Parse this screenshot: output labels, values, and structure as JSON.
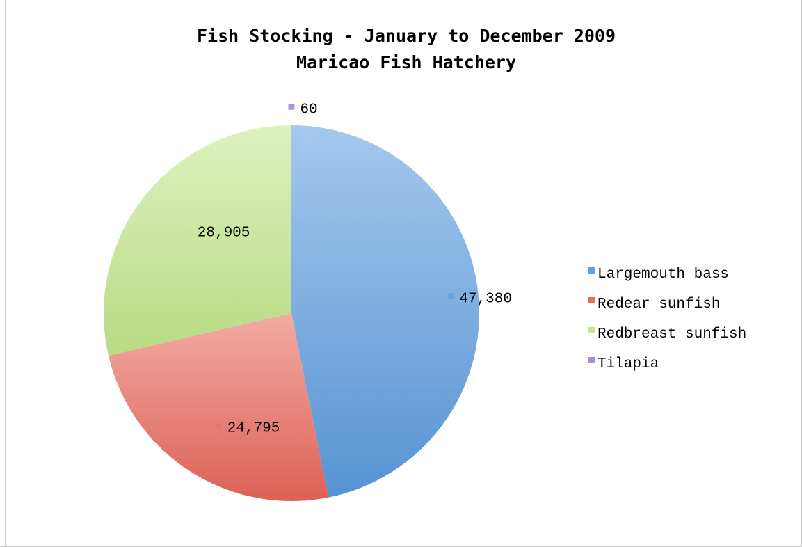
{
  "chart_data": {
    "type": "pie",
    "title": "Fish Stocking - January to December 2009",
    "subtitle": "Maricao Fish Hatchery",
    "categories": [
      "Largemouth bass",
      "Redear sunfish",
      "Redbreast sunfish",
      "Tilapia"
    ],
    "values": [
      47380,
      24795,
      28905,
      60
    ],
    "data_labels": [
      "47,380",
      "24,795",
      "28,905",
      "60"
    ],
    "colors": [
      "#5b9bde",
      "#e8665a",
      "#c2e68a",
      "#a586c6"
    ],
    "legend_position": "right",
    "start_angle": "12 o'clock",
    "direction": "clockwise"
  }
}
